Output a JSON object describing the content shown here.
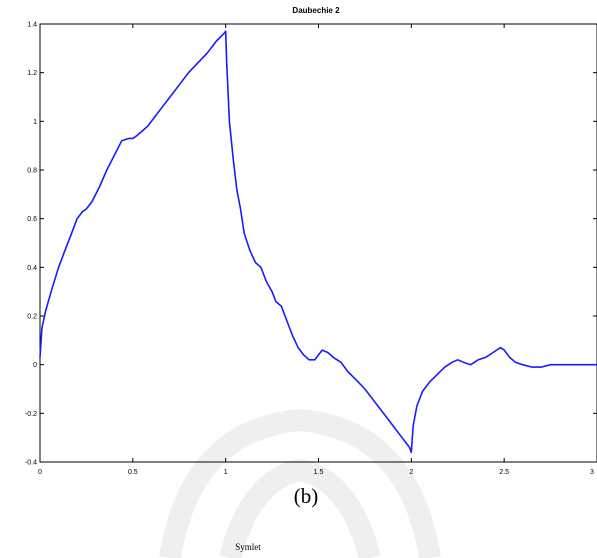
{
  "chart_data": {
    "type": "line",
    "title": "Daubechie 2",
    "xlabel": "",
    "ylabel": "",
    "xlim": [
      0,
      3
    ],
    "ylim": [
      -0.4,
      1.4
    ],
    "xticks": [
      0,
      0.5,
      1,
      1.5,
      2,
      2.5,
      3
    ],
    "xtick_labels": [
      "0",
      "0.5",
      "1",
      "1.5",
      "2",
      "2.5",
      "3"
    ],
    "yticks": [
      -0.4,
      -0.2,
      0,
      0.2,
      0.4,
      0.6,
      0.8,
      1,
      1.2,
      1.4
    ],
    "ytick_labels": [
      "-0.4",
      "-0.2",
      "0",
      "0.2",
      "0.4",
      "0.6",
      "0.8",
      "1",
      "1.2",
      "1.4"
    ],
    "grid": false,
    "series": [
      {
        "color": "#1a1aff",
        "x": [
          0,
          0.01,
          0.03,
          0.06,
          0.1,
          0.13,
          0.17,
          0.2,
          0.23,
          0.25,
          0.28,
          0.32,
          0.36,
          0.4,
          0.44,
          0.48,
          0.5,
          0.52,
          0.55,
          0.58,
          0.62,
          0.66,
          0.7,
          0.75,
          0.8,
          0.85,
          0.9,
          0.95,
          0.99,
          1.0,
          1.005,
          1.02,
          1.04,
          1.06,
          1.08,
          1.1,
          1.13,
          1.16,
          1.19,
          1.22,
          1.25,
          1.27,
          1.3,
          1.33,
          1.36,
          1.39,
          1.42,
          1.45,
          1.48,
          1.5,
          1.52,
          1.55,
          1.58,
          1.62,
          1.66,
          1.7,
          1.75,
          1.8,
          1.85,
          1.9,
          1.95,
          1.99,
          2.0,
          2.01,
          2.03,
          2.06,
          2.1,
          2.14,
          2.18,
          2.22,
          2.25,
          2.28,
          2.32,
          2.36,
          2.4,
          2.44,
          2.48,
          2.5,
          2.53,
          2.56,
          2.6,
          2.65,
          2.7,
          2.75,
          2.8,
          2.85,
          2.9,
          2.95,
          3.0
        ],
        "y": [
          0.03,
          0.15,
          0.22,
          0.3,
          0.4,
          0.46,
          0.54,
          0.6,
          0.63,
          0.64,
          0.67,
          0.73,
          0.8,
          0.86,
          0.92,
          0.93,
          0.93,
          0.94,
          0.96,
          0.98,
          1.02,
          1.06,
          1.1,
          1.15,
          1.2,
          1.24,
          1.28,
          1.33,
          1.36,
          1.37,
          1.25,
          1.0,
          0.85,
          0.72,
          0.64,
          0.54,
          0.47,
          0.42,
          0.4,
          0.34,
          0.3,
          0.26,
          0.24,
          0.18,
          0.12,
          0.07,
          0.04,
          0.02,
          0.02,
          0.04,
          0.06,
          0.05,
          0.03,
          0.01,
          -0.03,
          -0.06,
          -0.1,
          -0.15,
          -0.2,
          -0.25,
          -0.3,
          -0.34,
          -0.36,
          -0.25,
          -0.17,
          -0.11,
          -0.07,
          -0.04,
          -0.01,
          0.01,
          0.02,
          0.01,
          0.0,
          0.02,
          0.03,
          0.05,
          0.07,
          0.06,
          0.03,
          0.01,
          0.0,
          -0.01,
          -0.01,
          0.0,
          0.0,
          0.0,
          0.0,
          0.0,
          0.0
        ]
      }
    ]
  },
  "figure": {
    "panel_label": "(b)",
    "next_panel_title": "Symlet"
  }
}
